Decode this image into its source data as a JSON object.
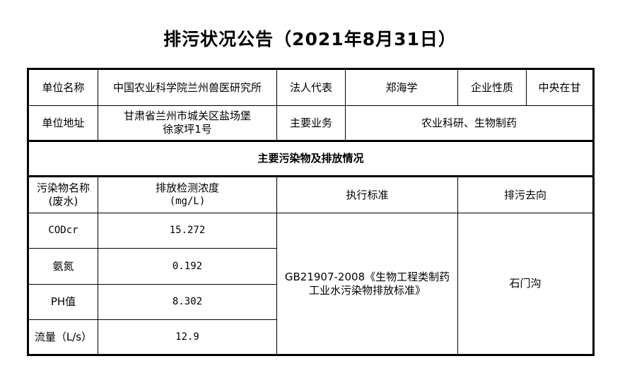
{
  "title": "排污状况公告（2021年8月31日）",
  "info": {
    "unit_name_label": "单位名称",
    "unit_name": "中国农业科学院兰州兽医研究所",
    "legal_rep_label": "法人代表",
    "legal_rep": "郑海学",
    "nature_label": "企业性质",
    "nature": "中央在甘",
    "address_label": "单位地址",
    "address_line1": "甘肃省兰州市城关区盐场堡",
    "address_line2": "徐家坪1号",
    "business_label": "主要业务",
    "business": "农业科研、生物制药"
  },
  "section_title": "主要污染物及排放情况",
  "headers": {
    "name_line1": "污染物名称",
    "name_line2": "(废水)",
    "conc_line1": "排放检测浓度",
    "conc_line2": "(mg/L)",
    "standard": "执行标准",
    "destination": "排污去向"
  },
  "rows": [
    {
      "name": "CODcr",
      "value": "15.272"
    },
    {
      "name": "氨氮",
      "value": "0.192"
    },
    {
      "name": "PH值",
      "value": "8.302"
    },
    {
      "name": "流量（L/s）",
      "value": "12.9"
    }
  ],
  "standard_line1": "GB21907-2008《生物工程类制药",
  "standard_line2": "工业水污染物排放标准》",
  "destination": "石门沟"
}
